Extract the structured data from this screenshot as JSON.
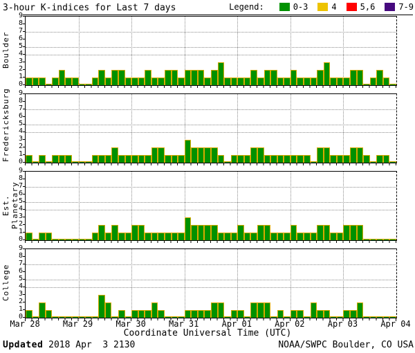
{
  "title": "3-hour K-indices for Last 7 days",
  "legend": {
    "label": "Legend:",
    "items": [
      {
        "label": "0-3",
        "color": "#009100"
      },
      {
        "label": "4",
        "color": "#edc301"
      },
      {
        "label": "5,6",
        "color": "#ff0000"
      },
      {
        "label": "7-9",
        "color": "#46097e"
      }
    ]
  },
  "chart_data": {
    "type": "bar",
    "ylim": [
      0,
      9
    ],
    "y_ticks": [
      0,
      1,
      2,
      3,
      4,
      5,
      6,
      7,
      8,
      9
    ],
    "dotted_hlines": [
      4,
      5,
      7
    ],
    "bars_per_day": 8,
    "days": 7,
    "bar_color": "#009100",
    "bar_outline": "#d9a900",
    "x_tick_labels": [
      "Mar 28",
      "Mar 29",
      "Mar 30",
      "Mar 31",
      "Apr 01",
      "Apr 02",
      "Apr 03",
      "Apr 04"
    ],
    "xlabel": "Coordinate Universal Time (UTC)",
    "panels": [
      {
        "name": "Boulder",
        "values": [
          1,
          1,
          1,
          0,
          1,
          2,
          1,
          1,
          0,
          0,
          1,
          2,
          1,
          2,
          2,
          1,
          1,
          1,
          2,
          1,
          1,
          2,
          2,
          1,
          2,
          2,
          2,
          1,
          2,
          3,
          1,
          1,
          1,
          1,
          2,
          1,
          2,
          2,
          1,
          1,
          2,
          1,
          1,
          1,
          2,
          3,
          1,
          1,
          1,
          2,
          2,
          0,
          1,
          2,
          1,
          0
        ]
      },
      {
        "name": "Fredericksburg",
        "values": [
          1,
          0,
          1,
          0,
          1,
          1,
          1,
          0,
          0,
          0,
          1,
          1,
          1,
          2,
          1,
          1,
          1,
          1,
          1,
          2,
          2,
          1,
          1,
          1,
          3,
          2,
          2,
          2,
          2,
          1,
          0,
          1,
          1,
          1,
          2,
          2,
          1,
          1,
          1,
          1,
          1,
          1,
          1,
          0,
          2,
          2,
          1,
          1,
          1,
          2,
          2,
          1,
          0,
          1,
          1,
          0
        ]
      },
      {
        "name": "Est. Planetary",
        "values": [
          1,
          0,
          1,
          1,
          0,
          0,
          0,
          0,
          0,
          0,
          1,
          2,
          1,
          2,
          1,
          1,
          2,
          2,
          1,
          1,
          1,
          1,
          1,
          1,
          3,
          2,
          2,
          2,
          2,
          1,
          1,
          1,
          2,
          1,
          1,
          2,
          2,
          1,
          1,
          1,
          2,
          1,
          1,
          1,
          2,
          2,
          1,
          1,
          2,
          2,
          2,
          0,
          0,
          0,
          0,
          0
        ]
      },
      {
        "name": "College",
        "values": [
          1,
          0,
          2,
          1,
          0,
          0,
          0,
          0,
          0,
          0,
          0,
          3,
          2,
          0,
          1,
          0,
          1,
          1,
          1,
          2,
          1,
          0,
          0,
          0,
          1,
          1,
          1,
          1,
          2,
          2,
          0,
          1,
          1,
          0,
          2,
          2,
          2,
          0,
          1,
          0,
          1,
          1,
          0,
          2,
          1,
          1,
          0,
          0,
          1,
          1,
          2,
          0,
          0,
          0,
          0,
          0
        ]
      }
    ]
  },
  "footer": {
    "updated_label": "Updated",
    "updated_value": "2018 Apr  3 2130",
    "source": "NOAA/SWPC Boulder, CO USA"
  }
}
